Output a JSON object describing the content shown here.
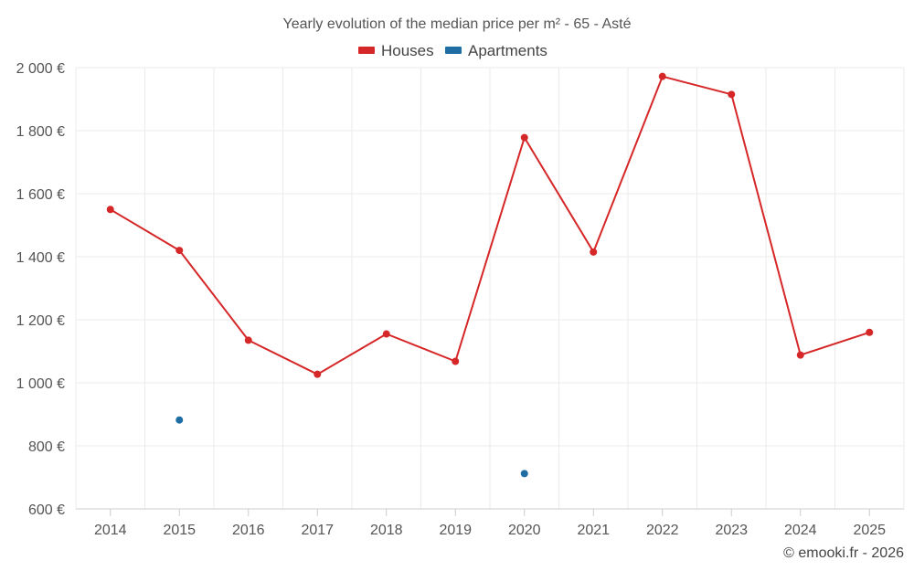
{
  "chart_data": {
    "type": "line",
    "title": "Yearly evolution of the median price per m² - 65 - Asté",
    "categories": [
      "2014",
      "2015",
      "2016",
      "2017",
      "2018",
      "2019",
      "2020",
      "2021",
      "2022",
      "2023",
      "2024",
      "2025"
    ],
    "series": [
      {
        "name": "Houses",
        "color": "#d62728",
        "values": [
          1550,
          1420,
          1135,
          1027,
          1155,
          1068,
          1778,
          1415,
          1972,
          1915,
          1088,
          1160
        ]
      },
      {
        "name": "Apartments",
        "color": "#1f6ea3",
        "values": [
          null,
          882,
          null,
          null,
          null,
          null,
          712,
          null,
          null,
          null,
          null,
          null
        ]
      }
    ],
    "ylim": [
      600,
      2000
    ],
    "yticks": [
      600,
      800,
      1000,
      1200,
      1400,
      1600,
      1800,
      2000
    ],
    "ytick_labels": [
      "600 €",
      "800 €",
      "1 000 €",
      "1 200 €",
      "1 400 €",
      "1 600 €",
      "1 800 €",
      "2 000 €"
    ],
    "xlabel": "",
    "ylabel": "",
    "grid": true,
    "legend_position": "top-center"
  },
  "credit": "© emooki.fr - 2026"
}
